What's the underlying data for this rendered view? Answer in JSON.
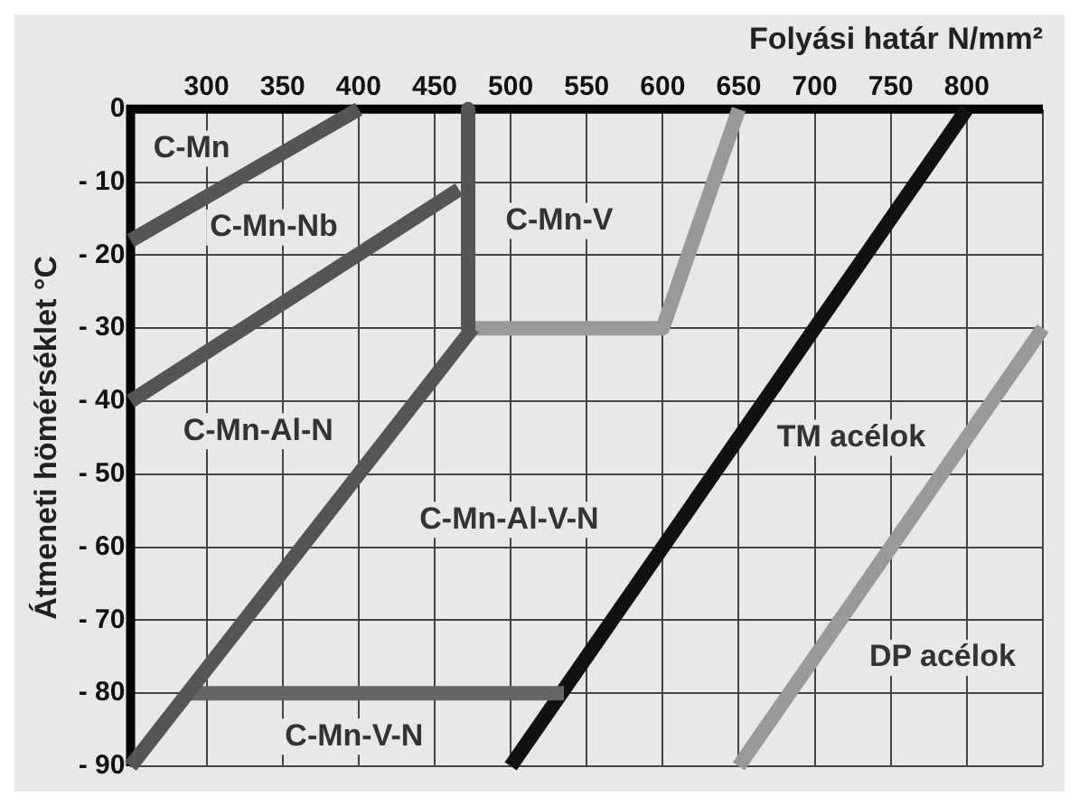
{
  "chart_data": {
    "type": "line",
    "xlabel": "Folyási határ N/mm²",
    "ylabel": "Átmeneti hömérséklet °C",
    "xlim": [
      250,
      850
    ],
    "xticks": [
      {
        "value": 250,
        "label": null
      },
      300,
      350,
      400,
      450,
      500,
      550,
      600,
      650,
      700,
      750,
      800,
      {
        "value": 850,
        "label": null
      }
    ],
    "ylim": [
      -90,
      0
    ],
    "yticks": [
      {
        "value": -90,
        "label": "- 90"
      },
      {
        "value": -80,
        "label": "- 80"
      },
      {
        "value": -70,
        "label": "- 70"
      },
      {
        "value": -60,
        "label": "- 60"
      },
      {
        "value": -50,
        "label": "- 50"
      },
      {
        "value": -40,
        "label": "- 40"
      },
      {
        "value": -30,
        "label": "- 30"
      },
      {
        "value": -20,
        "label": "- 20"
      },
      {
        "value": -10,
        "label": "- 10"
      },
      0
    ],
    "grid": true,
    "legend": false,
    "marker": "none",
    "line_style": "solid",
    "series": [
      {
        "color": "#555555",
        "x": [
          250,
          400
        ],
        "values": [
          -18,
          0
        ]
      },
      {
        "color": "#555555",
        "x": [
          250,
          466
        ],
        "values": [
          -40,
          -11
        ]
      },
      {
        "color": "#555555",
        "x": [
          472,
          472
        ],
        "values": [
          0,
          -30
        ]
      },
      {
        "color": "#555555",
        "x": [
          250,
          475
        ],
        "values": [
          -90,
          -30
        ]
      },
      {
        "color": "#999999",
        "x": [
          475,
          600,
          650
        ],
        "values": [
          -30,
          -30,
          0
        ]
      },
      {
        "color": "#666666",
        "x": [
          287,
          535
        ],
        "values": [
          -80,
          -80
        ]
      },
      {
        "color": "#111111",
        "x": [
          500,
          800
        ],
        "values": [
          -90,
          0
        ]
      },
      {
        "color": "#999999",
        "x": [
          650,
          850
        ],
        "values": [
          -90,
          -30
        ]
      }
    ],
    "annotations": [
      "C-Mn",
      "C-Mn-Nb",
      "C-Mn-V",
      "C-Mn-Al-N",
      "C-Mn-Al-V-N",
      "C-Mn-V-N",
      "TM acélok",
      "DP acélok"
    ]
  }
}
